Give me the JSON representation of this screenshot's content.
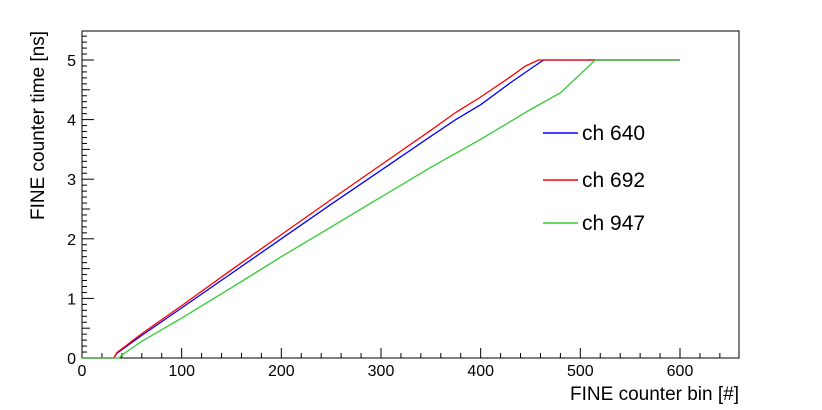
{
  "chart_data": {
    "type": "line",
    "xlabel": "FINE counter bin [#]",
    "ylabel": "FINE counter time [ns]",
    "xlim": [
      0,
      660
    ],
    "ylim": [
      0,
      5.5
    ],
    "x_ticks": [
      0,
      100,
      200,
      300,
      400,
      500,
      600
    ],
    "x_tick_labels": [
      "0",
      "100",
      "200",
      "300",
      "400",
      "500",
      "600"
    ],
    "y_ticks": [
      0,
      1,
      2,
      3,
      4,
      5
    ],
    "y_tick_labels": [
      "0",
      "1",
      "2",
      "3",
      "4",
      "5"
    ],
    "grid": false,
    "legend_position": "right",
    "series": [
      {
        "name": "ch 640",
        "color": "#0000ff",
        "x": [
          0,
          32,
          35,
          60,
          100,
          150,
          200,
          250,
          300,
          350,
          375,
          400,
          430,
          450,
          463,
          470,
          600
        ],
        "y": [
          0,
          0,
          0.08,
          0.38,
          0.84,
          1.42,
          2.0,
          2.58,
          3.15,
          3.72,
          4.0,
          4.25,
          4.62,
          4.85,
          5.0,
          5.0,
          5.0
        ]
      },
      {
        "name": "ch 692",
        "color": "#ff0000",
        "x": [
          0,
          32,
          35,
          60,
          100,
          150,
          200,
          250,
          300,
          350,
          375,
          400,
          430,
          445,
          458,
          600
        ],
        "y": [
          0,
          0,
          0.09,
          0.41,
          0.88,
          1.48,
          2.07,
          2.66,
          3.24,
          3.82,
          4.12,
          4.38,
          4.72,
          4.9,
          5.0,
          5.0
        ]
      },
      {
        "name": "ch 947",
        "color": "#33cc33",
        "x": [
          0,
          37,
          40,
          60,
          100,
          150,
          200,
          250,
          300,
          350,
          400,
          450,
          480,
          515,
          600
        ],
        "y": [
          0,
          0,
          0.05,
          0.28,
          0.67,
          1.18,
          1.7,
          2.2,
          2.7,
          3.2,
          3.67,
          4.17,
          4.45,
          5.0,
          5.0
        ]
      }
    ]
  }
}
